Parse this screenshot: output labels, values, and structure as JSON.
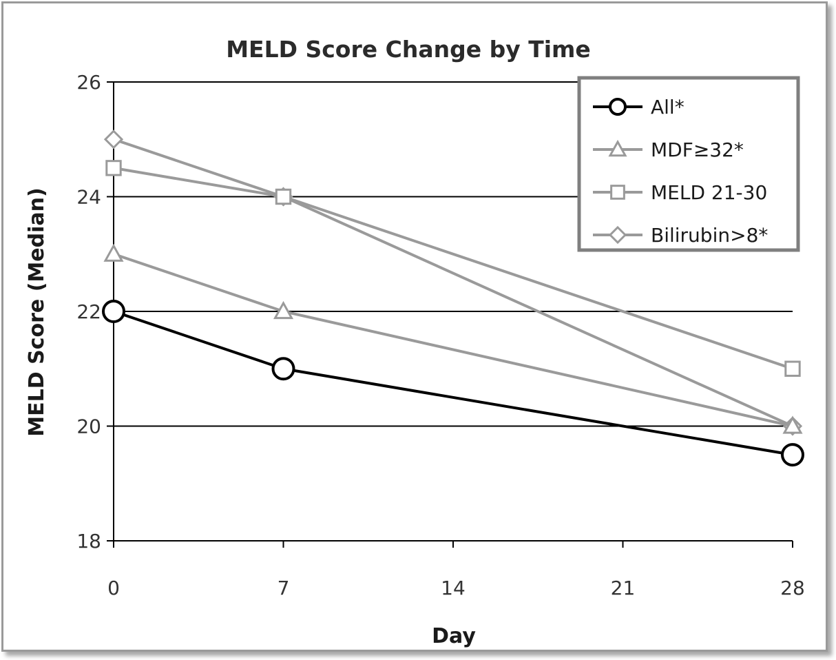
{
  "chart_data": {
    "type": "line",
    "title": "MELD Score Change by Time",
    "xlabel": "Day",
    "ylabel": "MELD Score (Median)",
    "xlim": [
      0,
      28
    ],
    "ylim": [
      18,
      26
    ],
    "x_ticks": [
      "0",
      "7",
      "14",
      "21",
      "28"
    ],
    "y_ticks": [
      "18",
      "20",
      "22",
      "24",
      "26"
    ],
    "grid": "horizontal",
    "legend_position": "top-right",
    "series": [
      {
        "name": "All*",
        "marker": "circle",
        "color": "#000000",
        "x": [
          0,
          7,
          28
        ],
        "y": [
          22,
          21,
          19.5
        ]
      },
      {
        "name": "MDF≥32*",
        "marker": "triangle",
        "color": "#9a9a9a",
        "x": [
          0,
          7,
          28
        ],
        "y": [
          23,
          22,
          20
        ]
      },
      {
        "name": "MELD 21-30",
        "marker": "square",
        "color": "#9a9a9a",
        "x": [
          0,
          7,
          28
        ],
        "y": [
          24.5,
          24,
          21
        ]
      },
      {
        "name": "Bilirubin>8*",
        "marker": "diamond",
        "color": "#9a9a9a",
        "x": [
          0,
          7,
          28
        ],
        "y": [
          25,
          24,
          20
        ]
      }
    ]
  }
}
